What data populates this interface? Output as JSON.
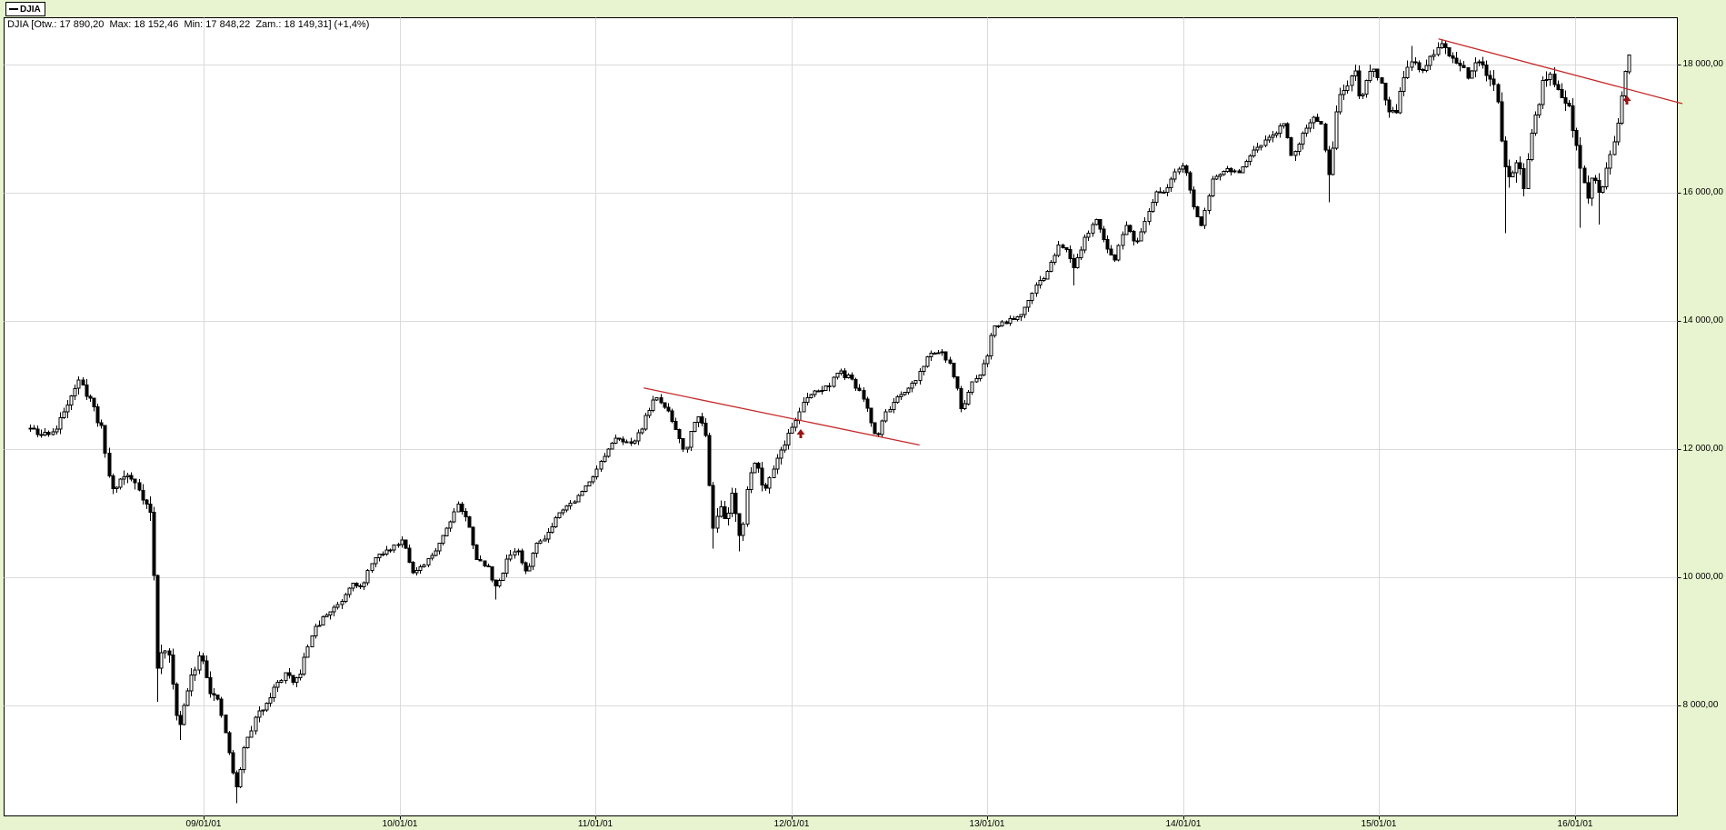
{
  "legend": {
    "label": "DJIA",
    "line_glyph": "—"
  },
  "title_bar": {
    "text": "DJIA [Otw.: 17 890,20  Max: 18 152,46  Min: 17 848,22  Zam.: 18 149,31] (+1,4%)"
  },
  "chart_data": {
    "type": "candlestick",
    "instrument": "DJIA",
    "timeframe": "weekly",
    "title": "DJIA [Otw.: 17 890,20  Max: 18 152,46  Min: 17 848,22  Zam.: 18 149,31] (+1,4%)",
    "last_bar": {
      "open": 17890.2,
      "high": 18152.46,
      "low": 17848.22,
      "close": 18149.31,
      "change_pct": "+1,4%"
    },
    "y_axis": {
      "side": "right",
      "ticks": [
        {
          "value": 18000,
          "label": "18 000,00"
        },
        {
          "value": 16000,
          "label": "16 000,00"
        },
        {
          "value": 14000,
          "label": "14 000,00"
        },
        {
          "value": 12000,
          "label": "12 000,00"
        },
        {
          "value": 10000,
          "label": "10 000,00"
        },
        {
          "value": 8000,
          "label": "8 000,00"
        }
      ],
      "visible_range": [
        6270,
        18740
      ]
    },
    "x_axis": {
      "ticks": [
        {
          "t": 2009,
          "label": "09/01/01"
        },
        {
          "t": 2010,
          "label": "10/01/01"
        },
        {
          "t": 2011,
          "label": "11/01/01"
        },
        {
          "t": 2012,
          "label": "12/01/01"
        },
        {
          "t": 2013,
          "label": "13/01/01"
        },
        {
          "t": 2014,
          "label": "14/01/01"
        },
        {
          "t": 2015,
          "label": "15/01/01"
        },
        {
          "t": 2016,
          "label": "16/01/01"
        }
      ],
      "visible_range_years": [
        2007.98,
        2016.53
      ]
    },
    "grid": true,
    "range": {
      "t_start": 2008.115,
      "t_end": 2016.27
    },
    "weeks_per_year": 52.18,
    "seed": 11,
    "keypoints": [
      [
        2008.115,
        12320
      ],
      [
        2008.16,
        12200
      ],
      [
        2008.2,
        12250
      ],
      [
        2008.25,
        12300
      ],
      [
        2008.3,
        12700
      ],
      [
        2008.36,
        13050
      ],
      [
        2008.42,
        12800
      ],
      [
        2008.48,
        12300
      ],
      [
        2008.53,
        11350
      ],
      [
        2008.6,
        11600
      ],
      [
        2008.66,
        11450
      ],
      [
        2008.7,
        11200
      ],
      [
        2008.74,
        10900
      ],
      [
        2008.76,
        8500
      ],
      [
        2008.8,
        8950
      ],
      [
        2008.83,
        8650
      ],
      [
        2008.875,
        7600
      ],
      [
        2008.91,
        8100
      ],
      [
        2008.95,
        8550
      ],
      [
        2008.99,
        8850
      ],
      [
        2009.03,
        8250
      ],
      [
        2009.08,
        8000
      ],
      [
        2009.12,
        7450
      ],
      [
        2009.165,
        6650
      ],
      [
        2009.21,
        7350
      ],
      [
        2009.26,
        7750
      ],
      [
        2009.31,
        8000
      ],
      [
        2009.36,
        8250
      ],
      [
        2009.42,
        8500
      ],
      [
        2009.46,
        8300
      ],
      [
        2009.5,
        8550
      ],
      [
        2009.55,
        9100
      ],
      [
        2009.61,
        9350
      ],
      [
        2009.66,
        9500
      ],
      [
        2009.71,
        9650
      ],
      [
        2009.76,
        9950
      ],
      [
        2009.81,
        9800
      ],
      [
        2009.86,
        10250
      ],
      [
        2009.91,
        10350
      ],
      [
        2009.96,
        10450
      ],
      [
        2010.02,
        10600
      ],
      [
        2010.07,
        10050
      ],
      [
        2010.12,
        10150
      ],
      [
        2010.18,
        10400
      ],
      [
        2010.24,
        10750
      ],
      [
        2010.3,
        11150
      ],
      [
        2010.35,
        10850
      ],
      [
        2010.4,
        10250
      ],
      [
        2010.45,
        10150
      ],
      [
        2010.5,
        9800
      ],
      [
        2010.55,
        10300
      ],
      [
        2010.6,
        10450
      ],
      [
        2010.645,
        10050
      ],
      [
        2010.7,
        10500
      ],
      [
        2010.76,
        10700
      ],
      [
        2010.82,
        11050
      ],
      [
        2010.88,
        11150
      ],
      [
        2010.94,
        11350
      ],
      [
        2011.0,
        11650
      ],
      [
        2011.06,
        11950
      ],
      [
        2011.12,
        12200
      ],
      [
        2011.18,
        12050
      ],
      [
        2011.24,
        12350
      ],
      [
        2011.3,
        12800
      ],
      [
        2011.36,
        12650
      ],
      [
        2011.42,
        12250
      ],
      [
        2011.46,
        11950
      ],
      [
        2011.52,
        12600
      ],
      [
        2011.575,
        12100
      ],
      [
        2011.595,
        10700
      ],
      [
        2011.63,
        11100
      ],
      [
        2011.67,
        10850
      ],
      [
        2011.7,
        11350
      ],
      [
        2011.745,
        10550
      ],
      [
        2011.79,
        11650
      ],
      [
        2011.82,
        11850
      ],
      [
        2011.86,
        11350
      ],
      [
        2011.9,
        11650
      ],
      [
        2011.95,
        12000
      ],
      [
        2012.0,
        12300
      ],
      [
        2012.06,
        12700
      ],
      [
        2012.12,
        12900
      ],
      [
        2012.18,
        12950
      ],
      [
        2012.24,
        13200
      ],
      [
        2012.3,
        13100
      ],
      [
        2012.36,
        12850
      ],
      [
        2012.4,
        12500
      ],
      [
        2012.435,
        12150
      ],
      [
        2012.48,
        12550
      ],
      [
        2012.53,
        12750
      ],
      [
        2012.58,
        12850
      ],
      [
        2012.64,
        13100
      ],
      [
        2012.7,
        13450
      ],
      [
        2012.76,
        13550
      ],
      [
        2012.81,
        13300
      ],
      [
        2012.84,
        13050
      ],
      [
        2012.875,
        12550
      ],
      [
        2012.92,
        13000
      ],
      [
        2012.96,
        13150
      ],
      [
        2013.0,
        13450
      ],
      [
        2013.03,
        13900
      ],
      [
        2013.1,
        14000
      ],
      [
        2013.17,
        14100
      ],
      [
        2013.24,
        14500
      ],
      [
        2013.31,
        14750
      ],
      [
        2013.37,
        15250
      ],
      [
        2013.41,
        15050
      ],
      [
        2013.445,
        14850
      ],
      [
        2013.5,
        15300
      ],
      [
        2013.56,
        15550
      ],
      [
        2013.61,
        15150
      ],
      [
        2013.65,
        14950
      ],
      [
        2013.71,
        15500
      ],
      [
        2013.76,
        15150
      ],
      [
        2013.8,
        15450
      ],
      [
        2013.86,
        16000
      ],
      [
        2013.92,
        16050
      ],
      [
        2013.97,
        16350
      ],
      [
        2014.01,
        16450
      ],
      [
        2014.05,
        15850
      ],
      [
        2014.095,
        15450
      ],
      [
        2014.15,
        16200
      ],
      [
        2014.22,
        16350
      ],
      [
        2014.28,
        16300
      ],
      [
        2014.34,
        16550
      ],
      [
        2014.4,
        16750
      ],
      [
        2014.46,
        16950
      ],
      [
        2014.52,
        17050
      ],
      [
        2014.56,
        16550
      ],
      [
        2014.61,
        16950
      ],
      [
        2014.66,
        17150
      ],
      [
        2014.71,
        17000
      ],
      [
        2014.745,
        16200
      ],
      [
        2014.79,
        17400
      ],
      [
        2014.84,
        17700
      ],
      [
        2014.88,
        17850
      ],
      [
        2014.91,
        17350
      ],
      [
        2014.95,
        17950
      ],
      [
        2015.0,
        17850
      ],
      [
        2015.04,
        17350
      ],
      [
        2015.09,
        17200
      ],
      [
        2015.13,
        17850
      ],
      [
        2015.17,
        18100
      ],
      [
        2015.22,
        17900
      ],
      [
        2015.26,
        18050
      ],
      [
        2015.31,
        18300
      ],
      [
        2015.36,
        18150
      ],
      [
        2015.41,
        18050
      ],
      [
        2015.46,
        17800
      ],
      [
        2015.51,
        18050
      ],
      [
        2015.56,
        17800
      ],
      [
        2015.6,
        17550
      ],
      [
        2015.625,
        16950
      ],
      [
        2015.645,
        16500
      ],
      [
        2015.67,
        16200
      ],
      [
        2015.7,
        16500
      ],
      [
        2015.72,
        16350
      ],
      [
        2015.745,
        16100
      ],
      [
        2015.79,
        17050
      ],
      [
        2015.84,
        17700
      ],
      [
        2015.88,
        17800
      ],
      [
        2015.92,
        17550
      ],
      [
        2015.96,
        17450
      ],
      [
        2016.0,
        16900
      ],
      [
        2016.03,
        16350
      ],
      [
        2016.065,
        15950
      ],
      [
        2016.1,
        16350
      ],
      [
        2016.13,
        15900
      ],
      [
        2016.16,
        16400
      ],
      [
        2016.19,
        16650
      ],
      [
        2016.22,
        17050
      ],
      [
        2016.245,
        17550
      ],
      [
        2016.27,
        18149.31
      ]
    ],
    "wick_lows": [
      [
        2008.76,
        8050
      ],
      [
        2008.875,
        7450
      ],
      [
        2009.165,
        6470
      ],
      [
        2010.5,
        9650
      ],
      [
        2011.595,
        10440
      ],
      [
        2011.745,
        10400
      ],
      [
        2013.445,
        14550
      ],
      [
        2014.745,
        15850
      ],
      [
        2015.645,
        15370
      ],
      [
        2015.745,
        15940
      ],
      [
        2016.03,
        15450
      ],
      [
        2016.13,
        15500
      ]
    ],
    "wick_highs": [
      [
        2008.36,
        13130
      ],
      [
        2014.95,
        18000
      ],
      [
        2015.17,
        18288
      ],
      [
        2015.31,
        18351
      ]
    ],
    "volatility_keypoints": [
      [
        2008.115,
        1.3
      ],
      [
        2008.6,
        1.5
      ],
      [
        2008.74,
        2.2
      ],
      [
        2008.8,
        2.6
      ],
      [
        2009.0,
        2.0
      ],
      [
        2009.2,
        2.2
      ],
      [
        2009.5,
        1.5
      ],
      [
        2009.9,
        1.0
      ],
      [
        2010.3,
        1.0
      ],
      [
        2010.5,
        1.5
      ],
      [
        2010.9,
        0.9
      ],
      [
        2011.3,
        0.9
      ],
      [
        2011.55,
        1.1
      ],
      [
        2011.62,
        2.2
      ],
      [
        2011.9,
        1.5
      ],
      [
        2012.3,
        0.9
      ],
      [
        2012.9,
        0.8
      ],
      [
        2013.5,
        0.8
      ],
      [
        2014.3,
        0.7
      ],
      [
        2014.75,
        1.1
      ],
      [
        2015.1,
        1.0
      ],
      [
        2015.55,
        1.0
      ],
      [
        2015.65,
        1.9
      ],
      [
        2015.9,
        1.1
      ],
      [
        2016.05,
        1.5
      ],
      [
        2016.27,
        0.9
      ]
    ],
    "trendlines": [
      {
        "id": 1,
        "t1": 2011.247,
        "v1": 12950,
        "t2": 2012.655,
        "v2": 12060
      },
      {
        "id": 2,
        "t1": 2015.305,
        "v1": 18400,
        "t2": 2016.55,
        "v2": 17390
      }
    ],
    "arrows": [
      {
        "t": 2012.05,
        "v": 12315,
        "direction": "up"
      },
      {
        "t": 2016.265,
        "v": 17520,
        "direction": "up"
      }
    ],
    "colors": {
      "panel_bg": "#E7F4CF",
      "plot_bg": "#FFFFFF",
      "grid": "#DADADA",
      "outline": "#000000",
      "up_fill": "#FFFFFF",
      "down_fill": "#000000",
      "trendline": "#C62828",
      "arrow": "#9B1212"
    }
  }
}
